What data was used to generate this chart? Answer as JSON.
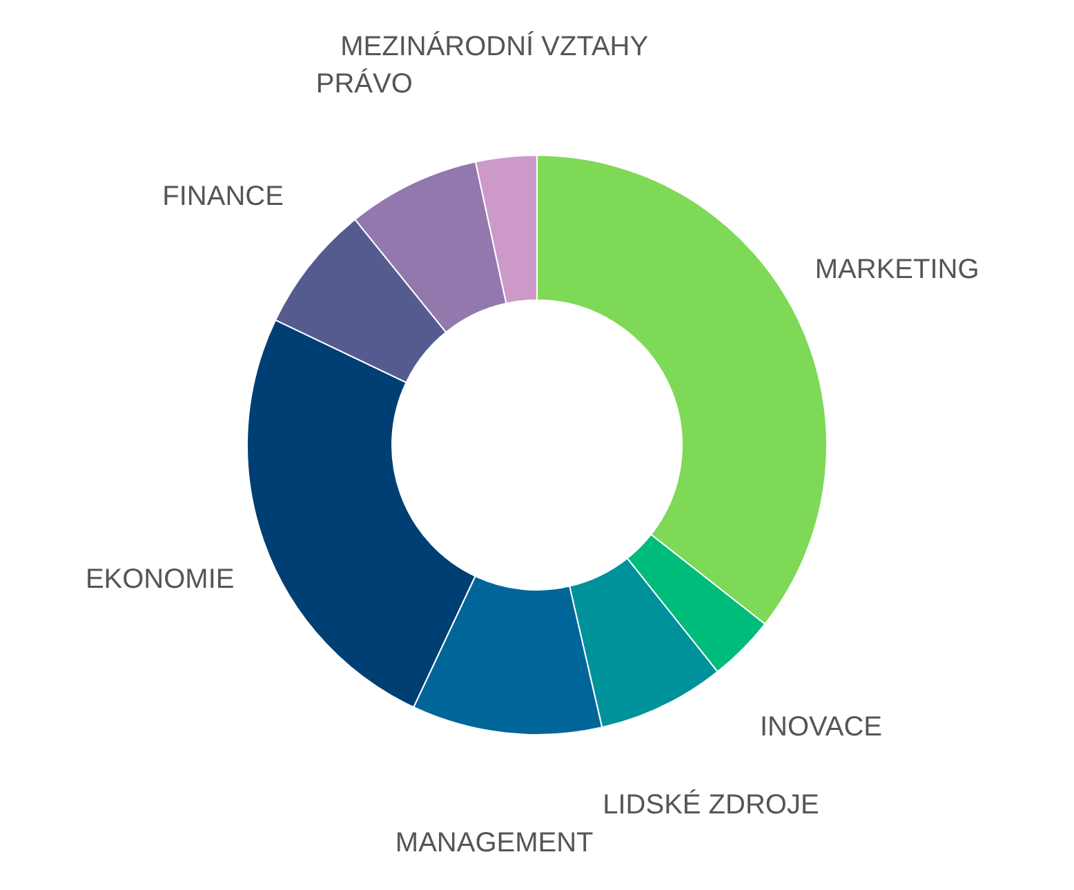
{
  "chart_data": {
    "type": "donut",
    "categories": [
      "MARKETING",
      "INOVACE",
      "LIDSKÉ ZDROJE",
      "MANAGEMENT",
      "EKONOMIE",
      "FINANCE",
      "PRÁVO",
      "MEZINÁRODNÍ VZTAHY"
    ],
    "values": [
      35.6,
      3.7,
      7.1,
      10.6,
      25.1,
      7.1,
      7.4,
      3.4
    ],
    "colors": [
      "#7ed957",
      "#00bc7a",
      "#00929a",
      "#006699",
      "#003f73",
      "#565b8f",
      "#9378ae",
      "#cc99c9"
    ],
    "legend": false
  }
}
